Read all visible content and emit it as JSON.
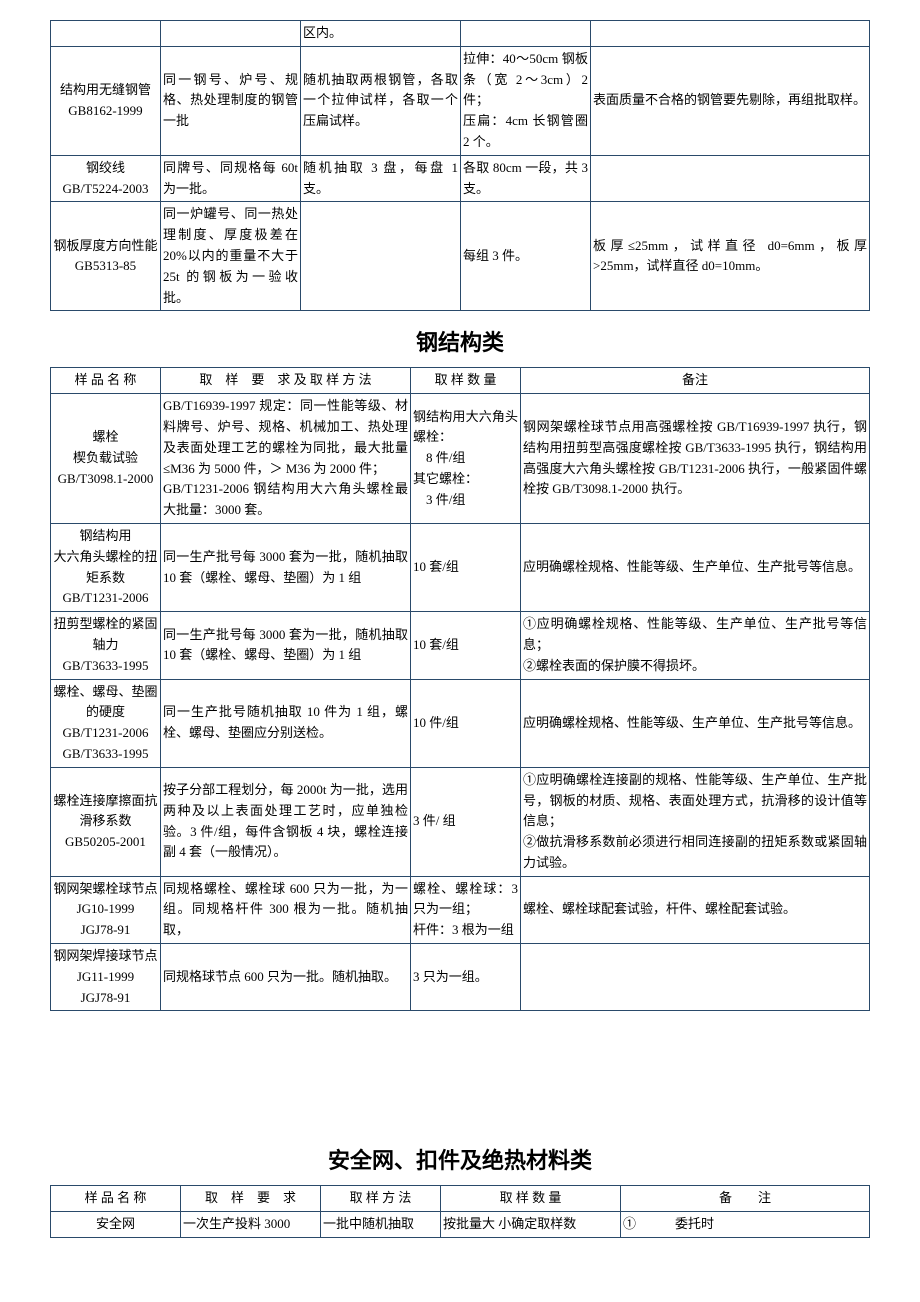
{
  "table1": {
    "rows": [
      {
        "c1": "",
        "c2": "",
        "c3": "区内。",
        "c4": "",
        "c5": ""
      },
      {
        "c1": "结构用无缝钢管\nGB8162-1999",
        "c2": "同一钢号、炉号、规格、热处理制度的钢管一批",
        "c3": "随机抽取两根钢管，各取一个拉伸试样，各取一个压扁试样。",
        "c4": "拉伸：40～50cm 钢板条（宽 2～3cm）2 件；\n压扁：4cm 长钢管圈 2 个。",
        "c5": "表面质量不合格的钢管要先剔除，再组批取样。"
      },
      {
        "c1": "钢绞线\nGB/T5224-2003",
        "c2": "同牌号、同规格每 60t 为一批。",
        "c3": "随机抽取 3 盘，每盘 1 支。",
        "c4": "各取 80cm 一段，共 3 支。",
        "c5": ""
      },
      {
        "c1": "钢板厚度方向性能\nGB5313-85",
        "c2": "同一炉罐号、同一热处理制度、厚度极差在 20%以内的重量不大于 25t 的钢板为一验收批。",
        "c3": "",
        "c4": "每组 3 件。",
        "c5": "板厚≤25mm，试样直径 d0=6mm，板厚>25mm，试样直径 d0=10mm。"
      }
    ]
  },
  "section2_title": "钢结构类",
  "table2": {
    "headers": [
      "样 品 名 称",
      "取　样　要　求 及 取 样 方 法",
      "取 样 数 量",
      "备注"
    ],
    "rows": [
      {
        "c1": "螺栓\n楔负载试验\nGB/T3098.1-2000",
        "c2": "GB/T16939-1997 规定：同一性能等级、材料牌号、炉号、规格、机械加工、热处理及表面处理工艺的螺栓为同批，最大批量 ≤M36 为 5000 件，＞ M36 为 2000 件；\nGB/T1231-2006 钢结构用大六角头螺栓最大批量：3000 套。",
        "c3": "钢结构用大六角头螺栓：\n　8 件/组\n其它螺栓：\n　3 件/组",
        "c4": "钢网架螺栓球节点用高强螺栓按 GB/T16939-1997 执行，钢结构用扭剪型高强度螺栓按 GB/T3633-1995 执行，钢结构用高强度大六角头螺栓按 GB/T1231-2006 执行，一般紧固件螺栓按 GB/T3098.1-2000 执行。"
      },
      {
        "c1": "钢结构用\n大六角头螺栓的扭矩系数\nGB/T1231-2006",
        "c2": "同一生产批号每 3000 套为一批，随机抽取 10 套（螺栓、螺母、垫圈）为 1 组",
        "c3": "10 套/组",
        "c4": "应明确螺栓规格、性能等级、生产单位、生产批号等信息。"
      },
      {
        "c1": "扭剪型螺栓的紧固轴力\nGB/T3633-1995",
        "c2": "同一生产批号每 3000 套为一批，随机抽取 10 套（螺栓、螺母、垫圈）为 1 组",
        "c3": "10 套/组",
        "c4": "①应明确螺栓规格、性能等级、生产单位、生产批号等信息；\n②螺栓表面的保护膜不得损坏。"
      },
      {
        "c1": "螺栓、螺母、垫圈的硬度\nGB/T1231-2006\nGB/T3633-1995",
        "c2": "同一生产批号随机抽取 10 件为 1 组，螺栓、螺母、垫圈应分别送检。",
        "c3": "10 件/组",
        "c4": "应明确螺栓规格、性能等级、生产单位、生产批号等信息。"
      },
      {
        "c1": "螺栓连接摩擦面抗滑移系数\nGB50205-2001",
        "c2": "按子分部工程划分，每 2000t 为一批，选用两种及以上表面处理工艺时，应单独检验。3 件/组，每件含钢板 4 块，螺栓连接副 4 套（一般情况）。",
        "c3": "3 件/ 组",
        "c4": "①应明确螺栓连接副的规格、性能等级、生产单位、生产批号，钢板的材质、规格、表面处理方式，抗滑移的设计值等信息；\n②做抗滑移系数前必须进行相同连接副的扭矩系数或紧固轴力试验。"
      },
      {
        "c1": "钢网架螺栓球节点\nJG10-1999\nJGJ78-91",
        "c2": "同规格螺栓、螺栓球 600 只为一批，为一组。同规格杆件 300 根为一批。随机抽取，",
        "c3": "螺栓、螺栓球：3 只为一组；\n杆件：3 根为一组",
        "c4": "螺栓、螺栓球配套试验，杆件、螺栓配套试验。"
      },
      {
        "c1": "钢网架焊接球节点\nJG11-1999\nJGJ78-91",
        "c2": "同规格球节点 600 只为一批。随机抽取。",
        "c3": "3 只为一组。",
        "c4": ""
      }
    ]
  },
  "section3_title": "安全网、扣件及绝热材料类",
  "table3": {
    "headers": [
      "样 品 名 称",
      "取　样　要　求",
      "取 样 方 法",
      "取 样 数 量",
      "备　　注"
    ],
    "rows": [
      {
        "c1": "安全网",
        "c2": "一次生产投料 3000",
        "c3": "一批中随机抽取",
        "c4": "按批量大 小确定取样数",
        "c5": "①　　　委托时"
      }
    ]
  }
}
